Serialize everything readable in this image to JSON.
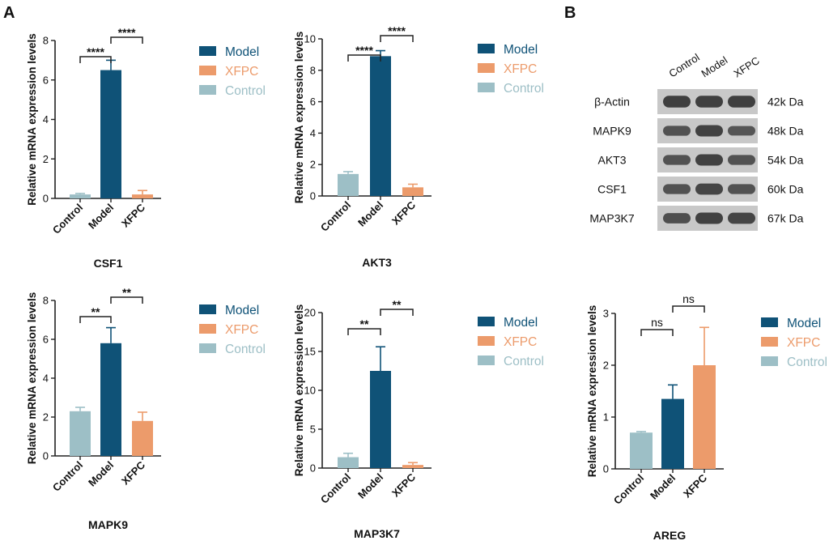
{
  "panel_labels": [
    "A",
    "B"
  ],
  "colors": {
    "model": "#0f5277",
    "xfpc": "#ec9b6b",
    "control": "#9dbfc6",
    "axis": "#222222",
    "blot_bg": "#c8c8c8",
    "band": "#3a3a3a"
  },
  "legend": [
    {
      "label": "Model",
      "color": "#0f5277"
    },
    {
      "label": "XFPC",
      "color": "#ec9b6b"
    },
    {
      "label": "Control",
      "color": "#9dbfc6"
    }
  ],
  "ylabel": "Relative mRNA expression levels",
  "chart_data": [
    {
      "type": "bar",
      "title": "CSF1",
      "categories": [
        "Control",
        "Model",
        "XFPC"
      ],
      "values": [
        0.2,
        6.5,
        0.2
      ],
      "errors": [
        0.05,
        0.5,
        0.2
      ],
      "ylim": [
        0,
        8
      ],
      "yticks": [
        0,
        2,
        4,
        6,
        8
      ],
      "ylabel": "Relative mRNA expression levels",
      "significance": [
        {
          "from": 0,
          "to": 1,
          "label": "****"
        },
        {
          "from": 1,
          "to": 2,
          "label": "****"
        }
      ]
    },
    {
      "type": "bar",
      "title": "AKT3",
      "categories": [
        "Control",
        "Model",
        "XFPC"
      ],
      "values": [
        1.4,
        8.9,
        0.55
      ],
      "errors": [
        0.15,
        0.35,
        0.2
      ],
      "ylim": [
        0,
        10
      ],
      "yticks": [
        0,
        2,
        4,
        6,
        8,
        10
      ],
      "ylabel": "Relative mRNA expression levels",
      "significance": [
        {
          "from": 0,
          "to": 1,
          "label": "****"
        },
        {
          "from": 1,
          "to": 2,
          "label": "****"
        }
      ]
    },
    {
      "type": "bar",
      "title": "MAPK9",
      "categories": [
        "Control",
        "Model",
        "XFPC"
      ],
      "values": [
        2.3,
        5.8,
        1.8
      ],
      "errors": [
        0.2,
        0.8,
        0.45
      ],
      "ylim": [
        0,
        8
      ],
      "yticks": [
        0,
        2,
        4,
        6,
        8
      ],
      "ylabel": "Relative mRNA expression levels",
      "significance": [
        {
          "from": 0,
          "to": 1,
          "label": "**"
        },
        {
          "from": 1,
          "to": 2,
          "label": "**"
        }
      ]
    },
    {
      "type": "bar",
      "title": "MAP3K7",
      "categories": [
        "Control",
        "Model",
        "XFPC"
      ],
      "values": [
        1.4,
        12.5,
        0.4
      ],
      "errors": [
        0.5,
        3.1,
        0.3
      ],
      "ylim": [
        0,
        20
      ],
      "yticks": [
        0,
        5,
        10,
        15,
        20
      ],
      "ylabel": "Relative mRNA expression levels",
      "significance": [
        {
          "from": 0,
          "to": 1,
          "label": "**"
        },
        {
          "from": 1,
          "to": 2,
          "label": "**"
        }
      ]
    },
    {
      "type": "bar",
      "title": "AREG",
      "categories": [
        "Control",
        "Model",
        "XFPC"
      ],
      "values": [
        0.7,
        1.35,
        2.0
      ],
      "errors": [
        0.02,
        0.27,
        0.73
      ],
      "ylim": [
        0,
        3
      ],
      "yticks": [
        0,
        1,
        2,
        3
      ],
      "ylabel": "Relative mRNA expression levels",
      "significance": [
        {
          "from": 0,
          "to": 1,
          "label": "ns"
        },
        {
          "from": 1,
          "to": 2,
          "label": "ns"
        }
      ]
    }
  ],
  "western_blot": {
    "lanes": [
      "Control",
      "Model",
      "XFPC"
    ],
    "rows": [
      {
        "protein": "β-Actin",
        "size": "42k Da",
        "intensity": [
          0.95,
          0.95,
          0.95
        ]
      },
      {
        "protein": "MAPK9",
        "size": "48k Da",
        "intensity": [
          0.7,
          0.9,
          0.65
        ]
      },
      {
        "protein": "AKT3",
        "size": "54k Da",
        "intensity": [
          0.7,
          0.9,
          0.7
        ]
      },
      {
        "protein": "CSF1",
        "size": "60k Da",
        "intensity": [
          0.7,
          0.85,
          0.7
        ]
      },
      {
        "protein": "MAP3K7",
        "size": "67k Da",
        "intensity": [
          0.75,
          0.9,
          0.85
        ]
      }
    ]
  }
}
